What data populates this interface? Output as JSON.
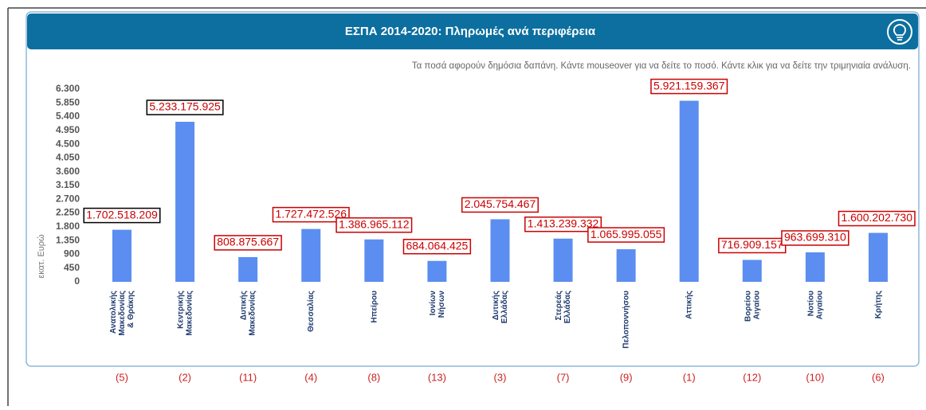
{
  "chart_data": {
    "type": "bar",
    "title": "ΕΣΠΑ 2014-2020: Πληρωμές ανά περιφέρεια",
    "subtitle": "Τα ποσά αφορούν δημόσια δαπάνη. Κάντε mouseover για να δείτε το ποσό. Κάντε κλικ για να δείτε την τριμηνιαία ανάλυση.",
    "y_label": "εκατ. Ευρώ",
    "categories": [
      [
        "Ανατολικής",
        "Μακεδονίας",
        "& Θράκης"
      ],
      [
        "Κεντρικής",
        "Μακεδονίας"
      ],
      [
        "Δυτικής",
        "Μακεδονίας"
      ],
      [
        "Θεσσαλίας"
      ],
      [
        "Ηπείρου"
      ],
      [
        "Ιονίων",
        "Νήσων"
      ],
      [
        "Δυτικής",
        "Ελλάδας"
      ],
      [
        "Στερεάς",
        "Ελλάδας"
      ],
      [
        "Πελοποννήσου"
      ],
      [
        "Αττικής"
      ],
      [
        "Βορείου",
        "Αιγαίου"
      ],
      [
        "Νοτίου",
        "Αιγαίου"
      ],
      [
        "Κρήτης"
      ]
    ],
    "values": [
      1702.518209,
      5233.175925,
      808.875667,
      1727.472526,
      1386.965112,
      684.064425,
      2045.754467,
      1413.239332,
      1065.995055,
      5921.159367,
      716.909157,
      963.69931,
      1600.20273
    ],
    "value_labels": [
      "1.702.518.209",
      "5.233.175.925",
      "808.875.667",
      "1.727.472.526",
      "1.386.965.112",
      "684.064.425",
      "2.045.754.467",
      "1.413.239.332",
      "1.065.995.055",
      "5.921.159.367",
      "716.909.157",
      "963.699.310",
      "1.600.202.730"
    ],
    "value_label_borders": [
      "#000000",
      "#000000",
      "#cc0000",
      "#cc0000",
      "#cc0000",
      "#cc0000",
      "#cc0000",
      "#cc0000",
      "#cc0000",
      "#cc0000",
      "#cc0000",
      "#cc0000",
      "#cc0000"
    ],
    "ranks": [
      "(5)",
      "(2)",
      "(11)",
      "(4)",
      "(8)",
      "(13)",
      "(3)",
      "(7)",
      "(9)",
      "(1)",
      "(12)",
      "(10)",
      "(6)"
    ],
    "color": "#5b8ef0",
    "ylim": [
      0,
      6300
    ],
    "yticks": [
      0,
      450,
      900,
      {
        "value": 1350,
        "label": "1.350"
      },
      {
        "value": 1800,
        "label": "1.800"
      },
      {
        "value": 2250,
        "label": "2.250"
      },
      {
        "value": 2700,
        "label": "2.700"
      },
      {
        "value": 3150,
        "label": "3.150"
      },
      {
        "value": 3600,
        "label": "3.600"
      },
      {
        "value": 4050,
        "label": "4.050"
      },
      {
        "value": 4500,
        "label": "4.500"
      },
      {
        "value": 4950,
        "label": "4.950"
      },
      {
        "value": 5400,
        "label": "5.400"
      },
      {
        "value": 5850,
        "label": "5.850"
      },
      {
        "value": 6300,
        "label": "6.300"
      }
    ],
    "grid": false
  }
}
